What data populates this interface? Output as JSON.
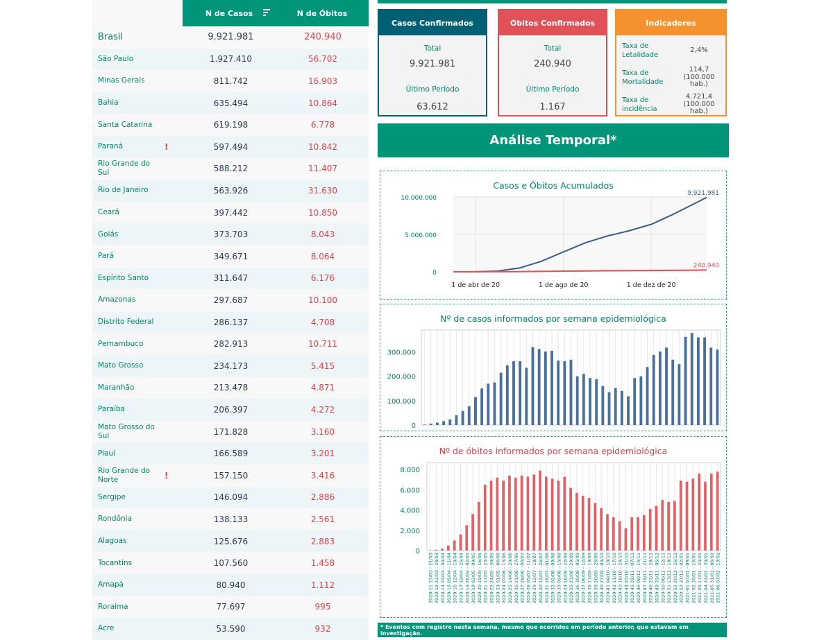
{
  "table": {
    "header_cases": "N de Casos",
    "header_deaths": "N de Óbitos",
    "rows": [
      {
        "name": "Brasil",
        "cases": "9.921.981",
        "deaths": "240.940",
        "flag": ""
      },
      {
        "name": "São Paulo",
        "cases": "1.927.410",
        "deaths": "56.702",
        "flag": ""
      },
      {
        "name": "Minas Gerais",
        "cases": "811.742",
        "deaths": "16.903",
        "flag": ""
      },
      {
        "name": "Bahia",
        "cases": "635.494",
        "deaths": "10.864",
        "flag": ""
      },
      {
        "name": "Santa Catarina",
        "cases": "619.198",
        "deaths": "6.778",
        "flag": ""
      },
      {
        "name": "Paraná",
        "cases": "597.494",
        "deaths": "10.842",
        "flag": "!"
      },
      {
        "name": "Rio Grande do Sul",
        "cases": "588.212",
        "deaths": "11.407",
        "flag": ""
      },
      {
        "name": "Rio de Janeiro",
        "cases": "563.926",
        "deaths": "31.630",
        "flag": ""
      },
      {
        "name": "Ceará",
        "cases": "397.442",
        "deaths": "10.850",
        "flag": ""
      },
      {
        "name": "Goiás",
        "cases": "373.703",
        "deaths": "8.043",
        "flag": ""
      },
      {
        "name": "Pará",
        "cases": "349.671",
        "deaths": "8.064",
        "flag": ""
      },
      {
        "name": "Espírito Santo",
        "cases": "311.647",
        "deaths": "6.176",
        "flag": ""
      },
      {
        "name": "Amazonas",
        "cases": "297.687",
        "deaths": "10.100",
        "flag": ""
      },
      {
        "name": "Distrito Federal",
        "cases": "286.137",
        "deaths": "4.708",
        "flag": ""
      },
      {
        "name": "Pernambuco",
        "cases": "282.913",
        "deaths": "10.711",
        "flag": ""
      },
      {
        "name": "Mato Grosso",
        "cases": "234.173",
        "deaths": "5.415",
        "flag": ""
      },
      {
        "name": "Maranhão",
        "cases": "213.478",
        "deaths": "4.871",
        "flag": ""
      },
      {
        "name": "Paraíba",
        "cases": "206.397",
        "deaths": "4.272",
        "flag": ""
      },
      {
        "name": "Mato Grosso do Sul",
        "cases": "171.828",
        "deaths": "3.160",
        "flag": ""
      },
      {
        "name": "Piauí",
        "cases": "166.589",
        "deaths": "3.201",
        "flag": ""
      },
      {
        "name": "Rio Grande do Norte",
        "cases": "157.150",
        "deaths": "3.416",
        "flag": "!"
      },
      {
        "name": "Sergipe",
        "cases": "146.094",
        "deaths": "2.886",
        "flag": ""
      },
      {
        "name": "Rondônia",
        "cases": "138.133",
        "deaths": "2.561",
        "flag": ""
      },
      {
        "name": "Alagoas",
        "cases": "125.676",
        "deaths": "2.883",
        "flag": ""
      },
      {
        "name": "Tocantins",
        "cases": "107.560",
        "deaths": "1.458",
        "flag": ""
      },
      {
        "name": "Amapá",
        "cases": "80.940",
        "deaths": "1.112",
        "flag": ""
      },
      {
        "name": "Roraima",
        "cases": "77.697",
        "deaths": "995",
        "flag": ""
      },
      {
        "name": "Acre",
        "cases": "53.590",
        "deaths": "932",
        "flag": ""
      }
    ]
  },
  "cards": {
    "cases": {
      "title": "Casos Confirmados",
      "total_label": "Total",
      "total": "9.921.981",
      "period_label": "Último Período",
      "period": "63.612"
    },
    "deaths": {
      "title": "Óbitos Confirmados",
      "total_label": "Total",
      "total": "240.940",
      "period_label": "Último Período",
      "period": "1.167"
    },
    "indicators": {
      "title": "Indicadores",
      "items": [
        {
          "label": "Taxa de Letalidade",
          "value": "2,4%",
          "unit": ""
        },
        {
          "label": "Taxa de Mortalidade",
          "value": "114,7",
          "unit": "(100.000 hab.)"
        },
        {
          "label": "Taxa de incidência",
          "value": "4.721,4",
          "unit": "(100.000 hab.)"
        }
      ]
    }
  },
  "section_title": "Análise Temporal*",
  "footnote": "* Eventos com registro nesta semana, mesmo que ocorridos em período anterior, que estavam em investigação.",
  "colors": {
    "green": "#009579",
    "teal": "#005f73",
    "red": "#e05258",
    "orange": "#f5922f",
    "cases_series": "#4a6f9a",
    "deaths_series": "#e06065"
  },
  "chart_data": [
    {
      "type": "line",
      "title": "Casos e Óbitos Acumulados",
      "x_ticks": [
        "1 de abr de 20",
        "1 de ago de 20",
        "1 de dez de 20"
      ],
      "x_tick_dates": [
        "2020-04-01",
        "2020-08-01",
        "2020-12-01"
      ],
      "y_ticks": [
        "0",
        "5.000.000",
        "10.000.000"
      ],
      "ylim": [
        0,
        10000000
      ],
      "xlim": [
        "2020-03-01",
        "2021-02-16"
      ],
      "series": [
        {
          "color": "#3b5d88",
          "end_label": "9.921.981",
          "x": [
            "2020-03-01",
            "2020-04-01",
            "2020-05-01",
            "2020-06-01",
            "2020-07-01",
            "2020-08-01",
            "2020-09-01",
            "2020-10-01",
            "2020-11-01",
            "2020-12-01",
            "2021-01-01",
            "2021-02-01",
            "2021-02-16"
          ],
          "values": [
            0,
            6000,
            90000,
            510000,
            1400000,
            2660000,
            3900000,
            4780000,
            5500000,
            6340000,
            7700000,
            9200000,
            9921981
          ]
        },
        {
          "color": "#e05258",
          "end_label": "240.940",
          "x": [
            "2020-03-01",
            "2020-04-01",
            "2020-05-01",
            "2020-06-01",
            "2020-07-01",
            "2020-08-01",
            "2020-09-01",
            "2020-10-01",
            "2020-11-01",
            "2020-12-01",
            "2021-01-01",
            "2021-02-01",
            "2021-02-16"
          ],
          "values": [
            0,
            200,
            6000,
            29000,
            59000,
            93000,
            122000,
            144000,
            159000,
            174000,
            195000,
            225000,
            240940
          ]
        }
      ]
    },
    {
      "type": "bar",
      "title": "Nº de casos informados por semana epidemiológica",
      "y_ticks": [
        "0",
        "100.000",
        "200.000",
        "300.000"
      ],
      "ylim": [
        0,
        390000
      ],
      "color": "#4a6f9a",
      "values": [
        2000,
        6000,
        10000,
        16000,
        23000,
        40000,
        58000,
        77000,
        115000,
        150000,
        170000,
        175000,
        215000,
        245000,
        262000,
        262000,
        235000,
        320000,
        312000,
        302000,
        305000,
        265000,
        262000,
        268000,
        200000,
        210000,
        193000,
        188000,
        160000,
        135000,
        152000,
        140000,
        118000,
        193000,
        200000,
        238000,
        288000,
        302000,
        318000,
        268000,
        250000,
        362000,
        378000,
        360000,
        360000,
        318000,
        310000
      ]
    },
    {
      "type": "bar",
      "title": "Nº de óbitos informados por semana epidemiológica",
      "y_ticks": [
        "0",
        "2.000",
        "4.000",
        "6.000",
        "8.000"
      ],
      "ylim": [
        0,
        8700
      ],
      "color": "#e06065",
      "categories": [
        "2020-11 15/03 - 21/03",
        "2020-12 22/03 - 28/03",
        "2020-14 29/03 - 04/04",
        "2020-15 05/04 - 11/04",
        "2020-16 12/04 - 18/04",
        "2020-17 19/04 - 25/04",
        "2020-18 26/04 - 02/05",
        "2020-19 03/05 - 09/05",
        "2020-20 10/05 - 16/05",
        "2020-21 17/05 - 23/05",
        "2020-22 24/05 - 30/05",
        "2020-23 31/05 - 06/06",
        "2020-24 07/06 - 13/06",
        "2020-25 14/06 - 20/06",
        "2020-26 21/06 - 27/06",
        "2020-27 28/06 - 04/07",
        "2020-28 05/07 - 11/07",
        "2020-29 12/07 - 18/07",
        "2020-30 19/07 - 25/07",
        "2020-31 26/07 - 01/08",
        "2020-32 02/08 - 08/08",
        "2020-33 09/08 - 15/08",
        "2020-34 16/08 - 22/08",
        "2020-35 23/08 - 29/08",
        "2020-36 30/08 - 05/09",
        "2020-37 06/09 - 12/09",
        "2020-38 13/09 - 19/09",
        "2020-39 20/09 - 26/09",
        "2020-40 27/09 - 03/10",
        "2020-41 04/10 - 10/10",
        "2020-42 11/10 - 17/10",
        "2020-43 18/10 - 24/10",
        "2020-44 25/10 - 31/10",
        "2020-45 01/11 - 07/11",
        "2020-46 08/11 - 14/11",
        "2020-47 15/11 - 21/11",
        "2020-48 22/11 - 28/11",
        "2020-49 29/11 - 05/12",
        "2020-50 06/12 - 12/12",
        "2020-51 13/12 - 19/12",
        "2020-52 20/12 - 26/12",
        "2020-53 27/12 - 02/01",
        "2021-01 03/01 - 09/01",
        "2021-02 10/01 - 16/01",
        "2021-03 17/01 - 23/01",
        "2021-04 24/01 - 30/01",
        "2021-05 31/01 - 06/02",
        "2021-06 07/02 - 13/02"
      ],
      "values": [
        20,
        80,
        180,
        500,
        1000,
        1600,
        2500,
        3600,
        4800,
        6500,
        6900,
        7200,
        6900,
        7400,
        7200,
        7400,
        7300,
        7500,
        7900,
        7300,
        7100,
        6900,
        7300,
        6200,
        5700,
        5400,
        5200,
        4700,
        4200,
        3600,
        3300,
        2900,
        2200,
        3300,
        3300,
        3500,
        4100,
        4400,
        5000,
        4800,
        4900,
        6900,
        6800,
        7100,
        7600,
        6800,
        7600,
        7800
      ]
    }
  ]
}
